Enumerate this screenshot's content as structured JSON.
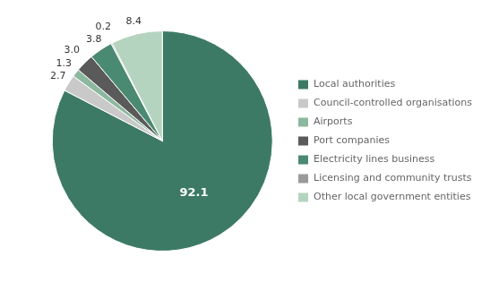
{
  "chart_data": {
    "type": "pie",
    "categories": [
      "Local authorities",
      "Council-controlled organisations",
      "Airports",
      "Port companies",
      "Electricity lines business",
      "Licensing and community trusts",
      "Other local government entities"
    ],
    "values": [
      92.1,
      2.7,
      1.3,
      3.0,
      3.8,
      0.2,
      8.4
    ],
    "value_labels": [
      "92.1",
      "2.7",
      "1.3",
      "3.0",
      "3.8",
      "0.2",
      "8.4"
    ],
    "colors": [
      "#3d7a65",
      "#c9c9c9",
      "#8db8a0",
      "#5a5a5a",
      "#4a8a72",
      "#9a9a9a",
      "#b5d4c0"
    ],
    "data_labels": true,
    "legend": "right"
  }
}
